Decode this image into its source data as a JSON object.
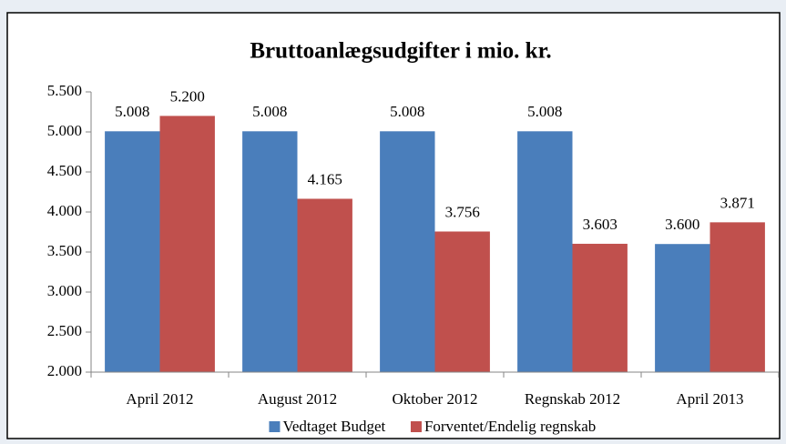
{
  "chart_data": {
    "type": "bar",
    "title": "Bruttoanlægsudgifter i mio. kr.",
    "categories": [
      "April 2012",
      "August 2012",
      "Oktober 2012",
      "Regnskab 2012",
      "April 2013"
    ],
    "series": [
      {
        "name": "Vedtaget Budget",
        "color": "#4a7ebb",
        "values": [
          5008,
          5008,
          5008,
          5008,
          3600
        ],
        "value_labels": [
          "5.008",
          "5.008",
          "5.008",
          "5.008",
          "3.600"
        ]
      },
      {
        "name": "Forventet/Endelig regnskab",
        "color": "#c0504d",
        "values": [
          5200,
          4165,
          3756,
          3603,
          3871
        ],
        "value_labels": [
          "5.200",
          "4.165",
          "3.756",
          "3.603",
          "3.871"
        ]
      }
    ],
    "ylim": [
      2000,
      5500
    ],
    "yticks": [
      {
        "value": 2000,
        "label": "2.000"
      },
      {
        "value": 2500,
        "label": "2.500"
      },
      {
        "value": 3000,
        "label": "3.000"
      },
      {
        "value": 3500,
        "label": "3.500"
      },
      {
        "value": 4000,
        "label": "4.000"
      },
      {
        "value": 4500,
        "label": "4.500"
      },
      {
        "value": 5000,
        "label": "5.000"
      },
      {
        "value": 5500,
        "label": "5.500"
      }
    ],
    "grid": false,
    "legend": "bottom"
  }
}
